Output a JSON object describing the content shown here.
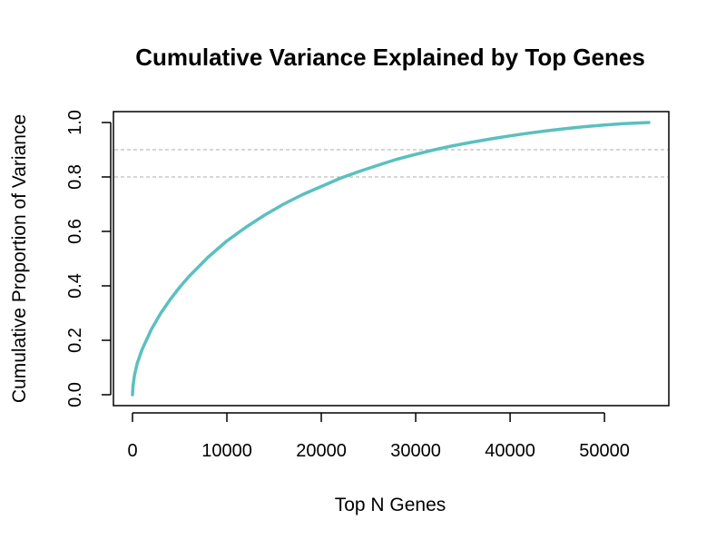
{
  "chart_data": {
    "type": "line",
    "title": "Cumulative Variance Explained by Top Genes",
    "xlabel": "Top N Genes",
    "ylabel": "Cumulative Proportion of Variance",
    "xlim": [
      0,
      54700
    ],
    "ylim": [
      0,
      1
    ],
    "xticks": [
      {
        "value": 0,
        "label": "0"
      },
      {
        "value": 10000,
        "label": "10000"
      },
      {
        "value": 20000,
        "label": "20000"
      },
      {
        "value": 30000,
        "label": "30000"
      },
      {
        "value": 40000,
        "label": "40000"
      },
      {
        "value": 50000,
        "label": "50000"
      }
    ],
    "yticks": [
      {
        "value": 0.0,
        "label": "0.0"
      },
      {
        "value": 0.2,
        "label": "0.2"
      },
      {
        "value": 0.4,
        "label": "0.4"
      },
      {
        "value": 0.6,
        "label": "0.6"
      },
      {
        "value": 0.8,
        "label": "0.8"
      },
      {
        "value": 1.0,
        "label": "1.0"
      }
    ],
    "reference_lines": [
      {
        "axis": "y",
        "value": 0.8,
        "style": "dashed",
        "color": "#bebebe"
      },
      {
        "axis": "y",
        "value": 0.9,
        "style": "dashed",
        "color": "#bebebe"
      }
    ],
    "grid": false,
    "legend": "none",
    "series": [
      {
        "color": "#5bc0be",
        "x": [
          0,
          50,
          200,
          500,
          1000,
          2000,
          3000,
          4000,
          5000,
          6000,
          8000,
          10000,
          12000,
          14000,
          16000,
          18000,
          20000,
          22000,
          24000,
          26000,
          28000,
          30000,
          32000,
          34000,
          36000,
          38000,
          40000,
          42000,
          44000,
          46000,
          48000,
          50000,
          52000,
          54700
        ],
        "y": [
          0.0,
          0.03,
          0.07,
          0.115,
          0.165,
          0.24,
          0.3,
          0.35,
          0.395,
          0.435,
          0.505,
          0.565,
          0.615,
          0.66,
          0.7,
          0.735,
          0.765,
          0.795,
          0.82,
          0.843,
          0.865,
          0.883,
          0.9,
          0.915,
          0.928,
          0.94,
          0.951,
          0.961,
          0.97,
          0.978,
          0.985,
          0.991,
          0.996,
          1.0
        ]
      }
    ]
  }
}
